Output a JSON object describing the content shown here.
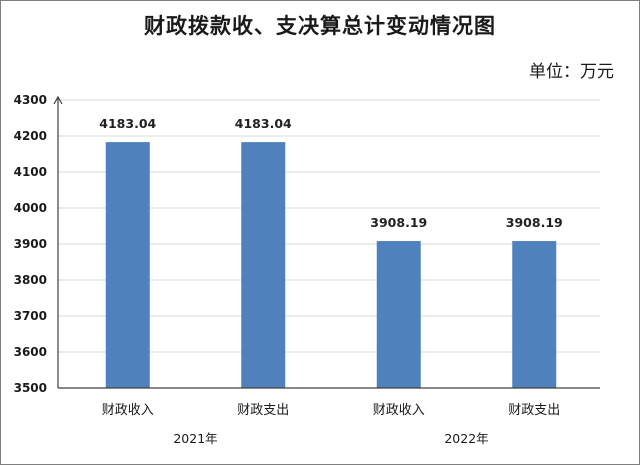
{
  "chart_data": {
    "type": "bar",
    "title": "财政拨款收、支决算总计变动情况图",
    "unit_label": "单位：万元",
    "categories": [
      "财政收入",
      "财政支出",
      "财政收入",
      "财政支出"
    ],
    "groups": [
      {
        "label": "2021年",
        "category_indices": [
          0,
          1
        ]
      },
      {
        "label": "2022年",
        "category_indices": [
          2,
          3
        ]
      }
    ],
    "values": [
      4183.04,
      4183.04,
      3908.19,
      3908.19
    ],
    "data_labels": [
      "4183.04",
      "4183.04",
      "3908.19",
      "3908.19"
    ],
    "ylim": [
      3500,
      4300
    ],
    "yticks": [
      3500,
      3600,
      3700,
      3800,
      3900,
      4000,
      4100,
      4200,
      4300
    ],
    "grid": true,
    "bar_color": "#4f81bd",
    "grid_color": "#d9d9d9",
    "axis_color": "#404040"
  }
}
